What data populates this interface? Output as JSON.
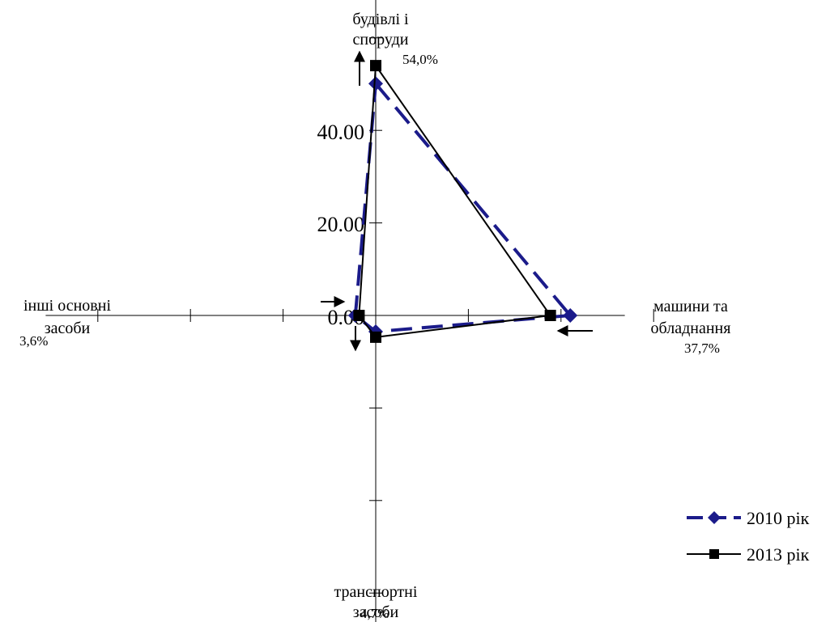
{
  "chart_data": {
    "type": "radar",
    "title": "",
    "axes": [
      {
        "label_lines": [
          "будівлі і",
          "споруди"
        ],
        "value_label": "54,0%"
      },
      {
        "label_lines": [
          "машини та",
          "обладнання"
        ],
        "value_label": "37,7%"
      },
      {
        "label_lines": [
          "транспортні",
          "засоби"
        ],
        "value_label": "4,7%"
      },
      {
        "label_lines": [
          "інші основні",
          "засоби"
        ],
        "value_label": "3,6%"
      }
    ],
    "scale": {
      "min": 0,
      "max": 80,
      "ticks": [
        0,
        20,
        40
      ],
      "tick_labels": [
        "0.00",
        "20.00",
        "40.00"
      ]
    },
    "series": [
      {
        "name": "2010 рік",
        "values": [
          50.1,
          42.0,
          3.5,
          4.4
        ],
        "color": "#1b1b8a",
        "style": "dashed",
        "marker": "diamond"
      },
      {
        "name": "2013 рік",
        "values": [
          54.0,
          37.7,
          4.7,
          3.6
        ],
        "color": "#000000",
        "style": "solid",
        "marker": "square"
      }
    ],
    "legend": {
      "position": "right"
    },
    "grid": false
  }
}
